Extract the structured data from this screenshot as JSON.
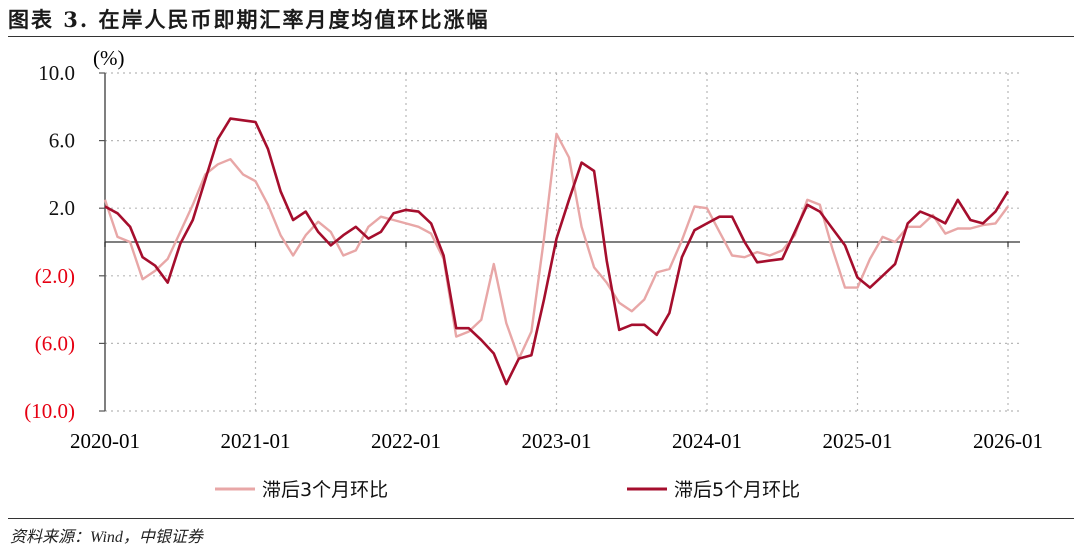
{
  "title": "图表 3. 在岸人民币即期汇率月度均值环比涨幅",
  "source": "资料来源：Wind，中银证券",
  "colors": {
    "lag3": "#e8a7a7",
    "lag5": "#a50e2d",
    "negative_label": "#e60012",
    "positive_label": "#111111",
    "zero_line": "#333333",
    "grid": "#b8b8b8"
  },
  "chart_data": {
    "type": "line",
    "title": "在岸人民币即期汇率月度均值环比涨幅",
    "ylabel": "(%)",
    "xlabel": "",
    "ylim": [
      -10,
      10
    ],
    "yticks": [
      10,
      6,
      2,
      -2,
      -6,
      -10
    ],
    "ytick_labels": [
      "10.0",
      "6.0",
      "2.0",
      "(2.0)",
      "(6.0)",
      "(10.0)"
    ],
    "xtick_labels": [
      "2020-01",
      "2021-01",
      "2022-01",
      "2023-01",
      "2024-01",
      "2025-01",
      "2026-01"
    ],
    "grid": true,
    "legend_position": "bottom",
    "x_start": "2020-01",
    "x_end": "2026-01",
    "frequency": "monthly",
    "series": [
      {
        "name": "滞后3个月环比",
        "color": "#e8a7a7",
        "values": [
          2.5,
          0.3,
          0.0,
          -2.2,
          -1.7,
          -1.0,
          0.6,
          2.2,
          4.0,
          4.6,
          4.9,
          4.0,
          3.6,
          2.2,
          0.4,
          -0.8,
          0.4,
          1.2,
          0.6,
          -0.8,
          -0.5,
          0.9,
          1.5,
          1.3,
          1.1,
          0.9,
          0.5,
          -1.0,
          -5.6,
          -5.3,
          -4.6,
          -1.3,
          -4.8,
          -6.9,
          -5.3,
          0.2,
          6.4,
          5.0,
          0.9,
          -1.5,
          -2.4,
          -3.6,
          -4.1,
          -3.4,
          -1.8,
          -1.6,
          0.1,
          2.1,
          2.0,
          0.6,
          -0.8,
          -0.9,
          -0.6,
          -0.8,
          -0.5,
          0.4,
          2.5,
          2.2,
          -0.4,
          -2.7,
          -2.7,
          -1.0,
          0.3,
          0.0,
          0.9,
          0.9,
          1.6,
          0.5,
          0.8,
          0.8,
          1.0,
          1.1,
          2.1
        ]
      },
      {
        "name": "滞后5个月环比",
        "color": "#a50e2d",
        "values": [
          2.1,
          1.7,
          0.9,
          -0.9,
          -1.4,
          -2.4,
          -0.1,
          1.3,
          3.7,
          6.1,
          7.3,
          7.2,
          7.1,
          5.5,
          3.0,
          1.3,
          1.8,
          0.6,
          -0.2,
          0.4,
          0.9,
          0.2,
          0.6,
          1.7,
          1.9,
          1.8,
          1.1,
          -0.8,
          -5.1,
          -5.1,
          -5.8,
          -6.6,
          -8.4,
          -6.9,
          -6.7,
          -3.4,
          0.2,
          2.5,
          4.7,
          4.2,
          -1.1,
          -5.2,
          -4.9,
          -4.9,
          -5.5,
          -4.2,
          -0.9,
          0.7,
          1.1,
          1.5,
          1.5,
          0.0,
          -1.2,
          -1.1,
          -1.0,
          0.6,
          2.2,
          1.8,
          0.8,
          -0.2,
          -2.1,
          -2.7,
          -2.0,
          -1.3,
          1.1,
          1.8,
          1.5,
          1.1,
          2.5,
          1.3,
          1.1,
          1.8,
          3.0
        ]
      }
    ]
  }
}
